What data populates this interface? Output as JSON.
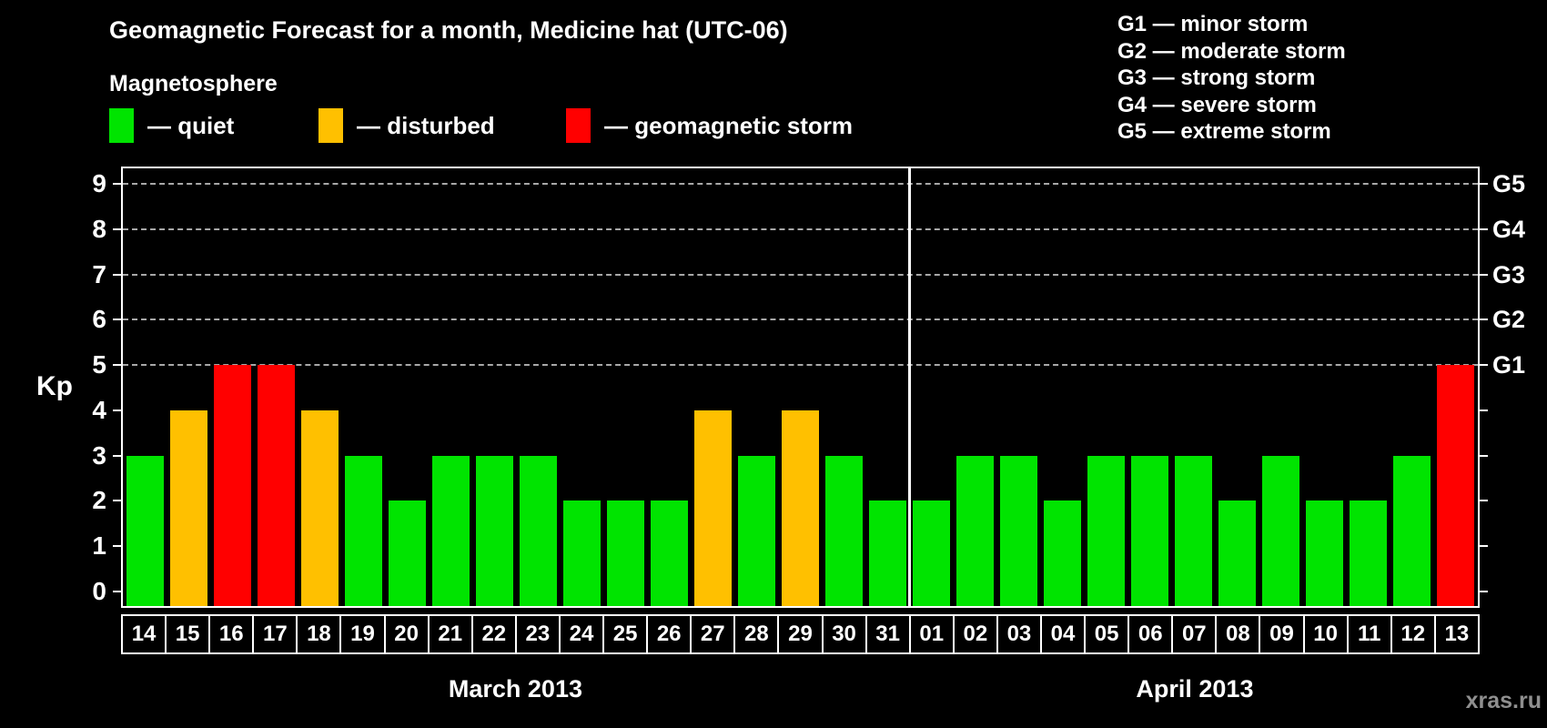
{
  "title": "Geomagnetic Forecast for a month, Medicine hat (UTC-06)",
  "legend": {
    "heading": "Magnetosphere",
    "items": [
      {
        "label": "— quiet",
        "status": "quiet",
        "color": "#00e400"
      },
      {
        "label": "— disturbed",
        "status": "disturbed",
        "color": "#ffc000"
      },
      {
        "label": "— geomagnetic storm",
        "status": "storm",
        "color": "#ff0000"
      }
    ]
  },
  "g_scale_legend": [
    "G1 — minor storm",
    "G2 — moderate storm",
    "G3 — strong storm",
    "G4 — severe storm",
    "G5 — extreme storm"
  ],
  "watermark": "xras.ru",
  "chart_data": {
    "type": "bar",
    "title": "Geomagnetic Forecast for a month, Medicine hat (UTC-06)",
    "xlabel": "",
    "ylabel": "Kp",
    "ylim": [
      0,
      9
    ],
    "yticks": [
      0,
      1,
      2,
      3,
      4,
      5,
      6,
      7,
      8,
      9
    ],
    "grid": "dashed horizontal lines at storm levels only",
    "gridline_levels": [
      5,
      6,
      7,
      8,
      9
    ],
    "right_axis_labels": [
      {
        "level": 5,
        "label": "G1"
      },
      {
        "level": 6,
        "label": "G2"
      },
      {
        "level": 7,
        "label": "G3"
      },
      {
        "level": 8,
        "label": "G4"
      },
      {
        "level": 9,
        "label": "G5"
      }
    ],
    "months": [
      {
        "label": "March 2013",
        "days": 18
      },
      {
        "label": "April 2013",
        "days": 13
      }
    ],
    "categories": [
      "14",
      "15",
      "16",
      "17",
      "18",
      "19",
      "20",
      "21",
      "22",
      "23",
      "24",
      "25",
      "26",
      "27",
      "28",
      "29",
      "30",
      "31",
      "01",
      "02",
      "03",
      "04",
      "05",
      "06",
      "07",
      "08",
      "09",
      "10",
      "11",
      "12",
      "13"
    ],
    "values": [
      3,
      4,
      5,
      5,
      4,
      3,
      2,
      3,
      3,
      3,
      2,
      2,
      2,
      4,
      3,
      4,
      3,
      2,
      2,
      3,
      3,
      2,
      3,
      3,
      3,
      2,
      3,
      2,
      2,
      3,
      5
    ],
    "statuses": [
      "quiet",
      "disturbed",
      "storm",
      "storm",
      "disturbed",
      "quiet",
      "quiet",
      "quiet",
      "quiet",
      "quiet",
      "quiet",
      "quiet",
      "quiet",
      "disturbed",
      "quiet",
      "disturbed",
      "quiet",
      "quiet",
      "quiet",
      "quiet",
      "quiet",
      "quiet",
      "quiet",
      "quiet",
      "quiet",
      "quiet",
      "quiet",
      "quiet",
      "quiet",
      "quiet",
      "storm"
    ],
    "colors": {
      "quiet": "#00e400",
      "disturbed": "#ffc000",
      "storm": "#ff0000"
    }
  }
}
